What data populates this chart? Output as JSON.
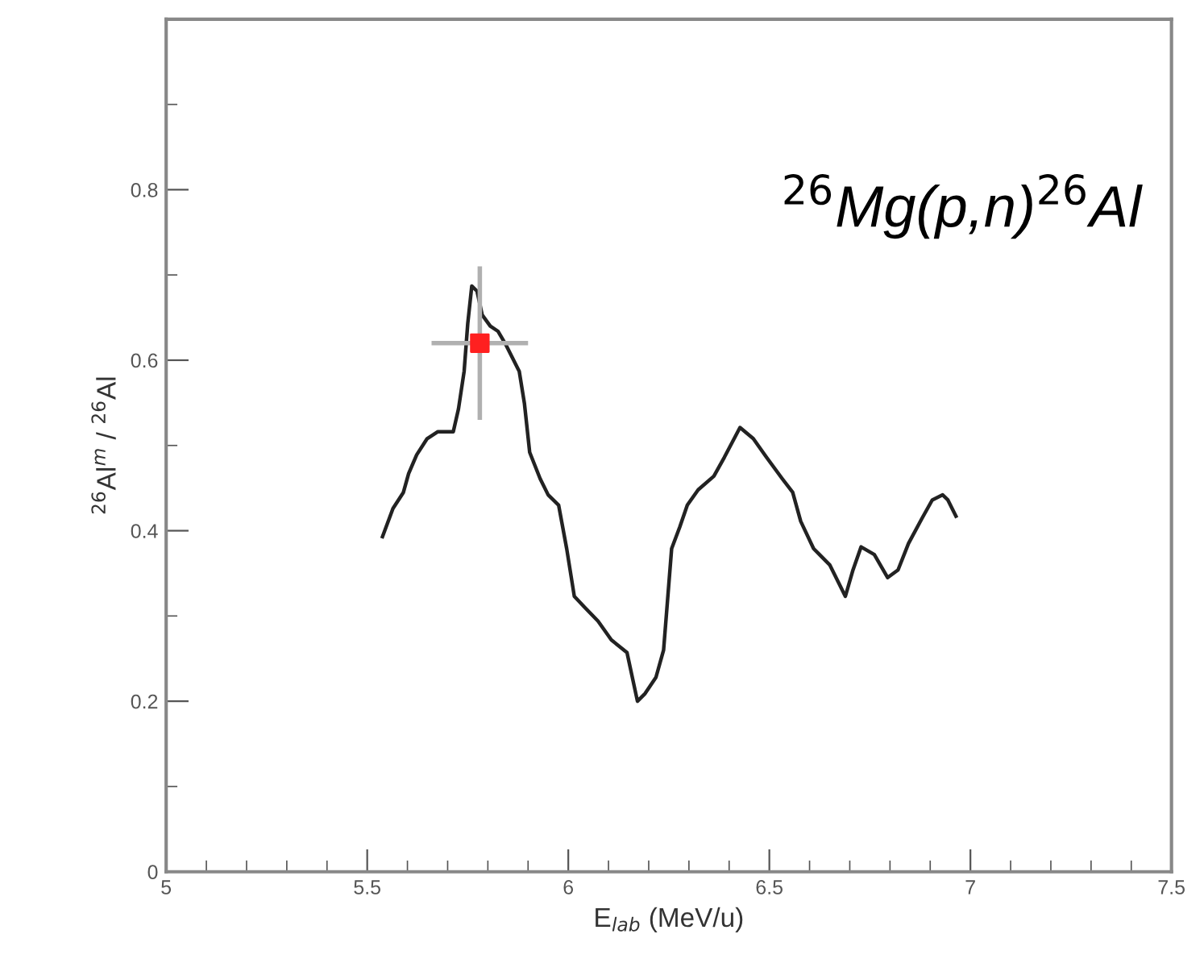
{
  "chart_data": {
    "type": "line",
    "xlabel": "E$_{lab}$ (MeV/u)",
    "ylabel": "$^{26}$Al$^{m}$ / $^{26}$Al",
    "annotations": [
      "$^{26}$Mg(p,n)$^{26}$Al"
    ],
    "xlim": [
      5,
      7.5
    ],
    "xticks": [
      5,
      5.5,
      6,
      6.5,
      7,
      7.5
    ],
    "ylim": [
      0,
      1
    ],
    "yticks": [
      0,
      0.2,
      0.4,
      0.6,
      0.8
    ],
    "grid": false,
    "legend": false,
    "series": [
      {
        "color": "#222222",
        "marker": "none",
        "line_style": "solid",
        "x": [
          5.538,
          5.564,
          5.59,
          5.603,
          5.623,
          5.649,
          5.675,
          5.714,
          5.727,
          5.741,
          5.75,
          5.76,
          5.773,
          5.786,
          5.806,
          5.825,
          5.845,
          5.878,
          5.891,
          5.904,
          5.93,
          5.95,
          5.976,
          5.996,
          6.015,
          6.041,
          6.074,
          6.107,
          6.146,
          6.172,
          6.191,
          6.218,
          6.237,
          6.257,
          6.277,
          6.296,
          6.323,
          6.362,
          6.388,
          6.427,
          6.46,
          6.493,
          6.532,
          6.558,
          6.578,
          6.61,
          6.65,
          6.689,
          6.708,
          6.728,
          6.761,
          6.794,
          6.82,
          6.846,
          6.879,
          6.905,
          6.931,
          6.944,
          6.964
        ],
        "values": [
          0.393,
          0.426,
          0.445,
          0.467,
          0.489,
          0.508,
          0.516,
          0.516,
          0.543,
          0.587,
          0.643,
          0.687,
          0.681,
          0.653,
          0.64,
          0.634,
          0.618,
          0.587,
          0.549,
          0.492,
          0.461,
          0.442,
          0.43,
          0.379,
          0.323,
          0.31,
          0.294,
          0.272,
          0.257,
          0.2,
          0.209,
          0.228,
          0.26,
          0.379,
          0.404,
          0.43,
          0.448,
          0.464,
          0.486,
          0.521,
          0.508,
          0.486,
          0.461,
          0.445,
          0.411,
          0.379,
          0.36,
          0.323,
          0.354,
          0.381,
          0.372,
          0.345,
          0.354,
          0.385,
          0.414,
          0.436,
          0.442,
          0.436,
          0.417
        ]
      },
      {
        "type": "scatter",
        "color": "#ff2020",
        "marker": "square",
        "x": [
          5.78
        ],
        "values": [
          0.62
        ],
        "errors": [
          0.09
        ],
        "xerrors": [
          0.12
        ]
      }
    ]
  }
}
